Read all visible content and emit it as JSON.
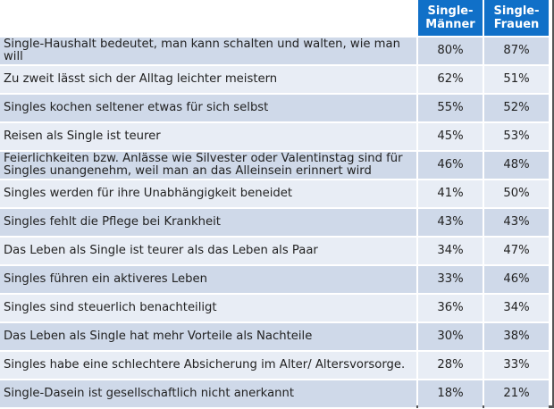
{
  "chart_data": {
    "type": "table",
    "columns": [
      "",
      "Single-\nMänner",
      "Single-\nFrauen"
    ],
    "header": {
      "col1_line1": "Single-",
      "col1_line2": "Männer",
      "col2_line1": "Single-",
      "col2_line2": "Frauen"
    },
    "rows": [
      {
        "label": "Single-Haushalt bedeutet, man kann schalten und walten, wie man will",
        "men": "80%",
        "women": "87%"
      },
      {
        "label": "Zu zweit lässt sich der Alltag leichter meistern",
        "men": "62%",
        "women": "51%"
      },
      {
        "label": "Singles kochen seltener etwas für sich selbst",
        "men": "55%",
        "women": "52%"
      },
      {
        "label": "Reisen als Single ist teurer",
        "men": "45%",
        "women": "53%"
      },
      {
        "label": "Feierlichkeiten bzw. Anlässe wie Silvester oder Valentinstag sind für Singles unangenehm, weil man an das Alleinsein erinnert wird",
        "men": "46%",
        "women": "48%"
      },
      {
        "label": "Singles werden für ihre Unabhängigkeit beneidet",
        "men": "41%",
        "women": "50%"
      },
      {
        "label": "Singles fehlt die Pflege bei Krankheit",
        "men": "43%",
        "women": "43%"
      },
      {
        "label": "Das Leben als Single ist teurer als das Leben als Paar",
        "men": "34%",
        "women": "47%"
      },
      {
        "label": "Singles führen ein aktiveres Leben",
        "men": "33%",
        "women": "46%"
      },
      {
        "label": "Singles sind steuerlich benachteiligt",
        "men": "36%",
        "women": "34%"
      },
      {
        "label": "Das Leben als Single hat mehr Vorteile als Nachteile",
        "men": "30%",
        "women": "38%"
      },
      {
        "label": "Singles habe eine schlechtere Absicherung im Alter/ Altersvorsorge.",
        "men": "28%",
        "women": "33%"
      },
      {
        "label": "Single-Dasein ist gesellschaftlich nicht anerkannt",
        "men": "18%",
        "women": "21%"
      }
    ],
    "colors": {
      "header": "#1070c8",
      "row_odd": "#cfd9e9",
      "row_even": "#e8edf5"
    }
  }
}
